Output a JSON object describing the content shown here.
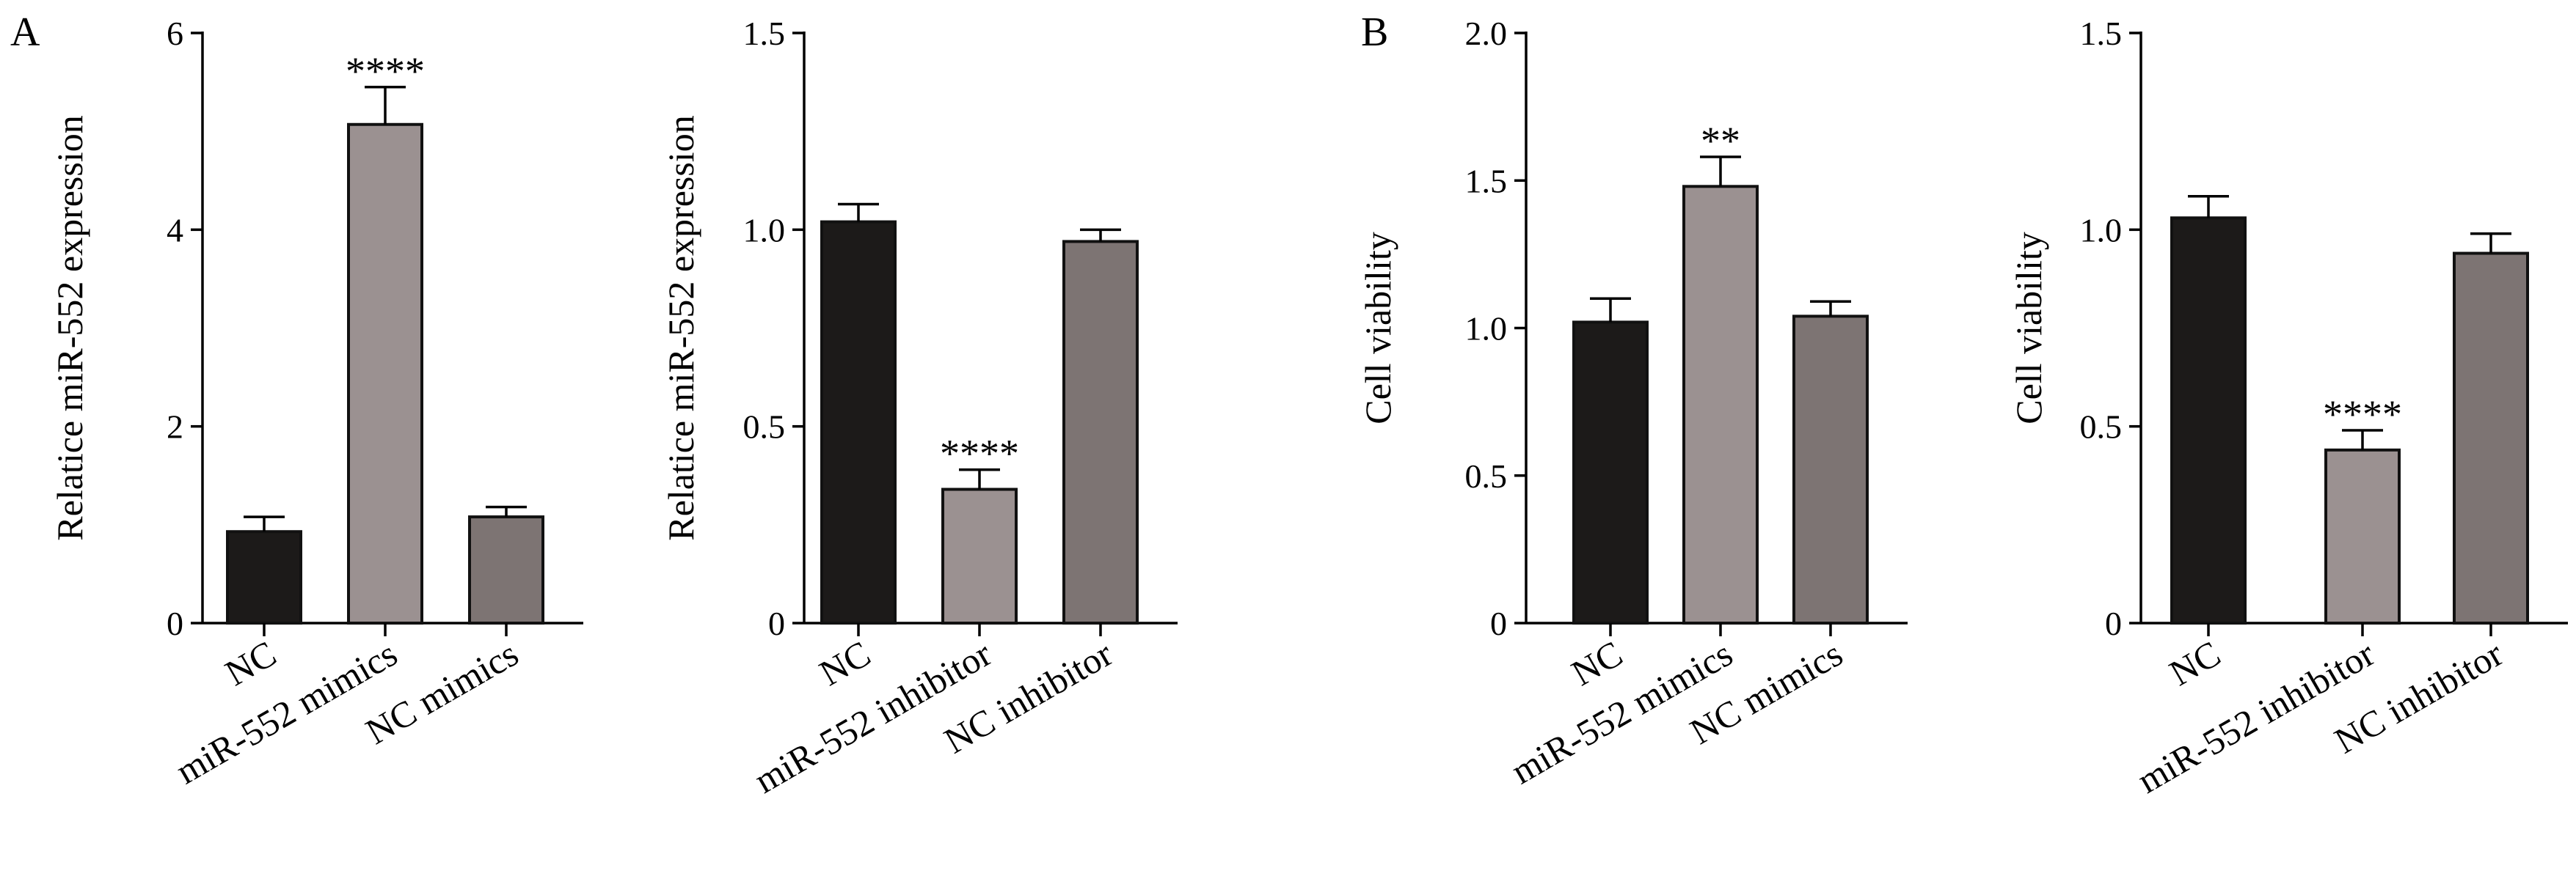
{
  "panel_letters": [
    "A",
    "B"
  ],
  "chart_data": [
    {
      "type": "bar",
      "panel": "A",
      "categories": [
        "NC",
        "miR-552 mimics",
        "NC mimics"
      ],
      "values": [
        0.93,
        5.07,
        1.08
      ],
      "errors": [
        0.15,
        0.38,
        0.1
      ],
      "significance": [
        "",
        "****",
        ""
      ],
      "colors": [
        "#1c1a19",
        "#9b9191",
        "#7d7473"
      ],
      "ylabel": "Relatice miR-552 expression",
      "ylim": [
        0,
        6
      ],
      "yticks": [
        0,
        2,
        4,
        6
      ],
      "ytick_labels": [
        "0",
        "2",
        "4",
        "6"
      ]
    },
    {
      "type": "bar",
      "categories": [
        "NC",
        "miR-552 inhibitor",
        "NC inhibitor"
      ],
      "values": [
        1.02,
        0.34,
        0.97
      ],
      "errors": [
        0.045,
        0.05,
        0.03
      ],
      "significance": [
        "",
        "****",
        ""
      ],
      "colors": [
        "#1c1a19",
        "#9b9191",
        "#7d7473"
      ],
      "ylabel": "Relatice miR-552 expression",
      "ylim": [
        0,
        1.5
      ],
      "yticks": [
        0,
        0.5,
        1.0,
        1.5
      ],
      "ytick_labels": [
        "0",
        "0.5",
        "1.0",
        "1.5"
      ]
    },
    {
      "type": "bar",
      "panel": "B",
      "categories": [
        "NC",
        "miR-552 mimics",
        "NC mimics"
      ],
      "values": [
        1.02,
        1.48,
        1.04
      ],
      "errors": [
        0.08,
        0.1,
        0.05
      ],
      "significance": [
        "",
        "**",
        ""
      ],
      "colors": [
        "#1c1a19",
        "#9b9191",
        "#7d7473"
      ],
      "ylabel": "Cell viability",
      "ylim": [
        0,
        2.0
      ],
      "yticks": [
        0,
        0.5,
        1.0,
        1.5,
        2.0
      ],
      "ytick_labels": [
        "0",
        "0.5",
        "1.0",
        "1.5",
        "2.0"
      ]
    },
    {
      "type": "bar",
      "categories": [
        "NC",
        "miR-552 inhibitor",
        "NC inhibitor"
      ],
      "values": [
        1.03,
        0.44,
        0.94
      ],
      "errors": [
        0.055,
        0.05,
        0.05
      ],
      "significance": [
        "",
        "****",
        ""
      ],
      "colors": [
        "#1c1a19",
        "#9b9191",
        "#7d7473"
      ],
      "ylabel": "Cell viability",
      "ylim": [
        0,
        1.5
      ],
      "yticks": [
        0,
        0.5,
        1.0,
        1.5
      ],
      "ytick_labels": [
        "0",
        "0.5",
        "1.0",
        "1.5"
      ]
    }
  ]
}
